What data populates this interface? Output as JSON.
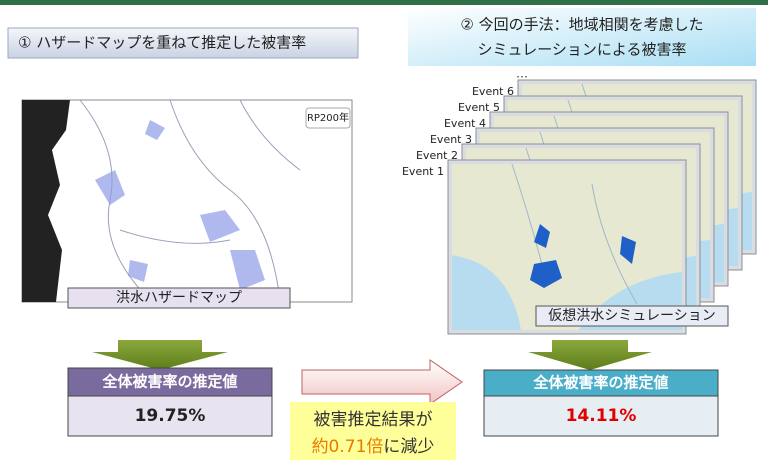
{
  "header": {
    "left_title": "① ハザードマップを重ねて推定した被害率",
    "right_title_lines": [
      "② 今回の手法：地域相関を考慮した",
      "シミュレーションによる被害率"
    ]
  },
  "left_map": {
    "badge": "RP200年",
    "caption": "洪水ハザードマップ"
  },
  "right_maps": {
    "events": [
      "Event 1",
      "Event 2",
      "Event 3",
      "Event 4",
      "Event 5",
      "Event 6"
    ],
    "more": "…",
    "caption": "仮想洪水シミュレーション"
  },
  "results": {
    "left": {
      "header": "全体被害率の推定値",
      "value": "19.75%"
    },
    "right": {
      "header": "全体被害率の推定値",
      "value": "14.11%"
    }
  },
  "comparison": {
    "line1": "被害推定結果が",
    "line2_highlight": "約0.71倍",
    "line2_rest": "に減少"
  }
}
